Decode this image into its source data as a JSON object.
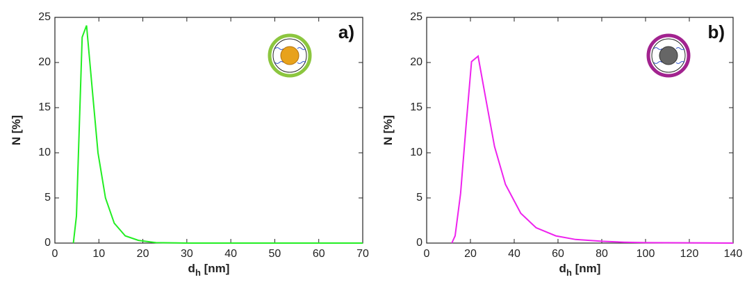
{
  "chart_data": [
    {
      "type": "line",
      "annotation": "a)",
      "ylabel": "N [%]",
      "xlabel": [
        "d",
        "h",
        " [nm]"
      ],
      "x": [
        4.2,
        4.9,
        6.2,
        7.2,
        8.5,
        9.8,
        11.5,
        13.5,
        16,
        19,
        23,
        30,
        70
      ],
      "values": [
        0,
        3,
        22.8,
        24.1,
        17,
        10,
        5,
        2.2,
        0.8,
        0.3,
        0.05,
        0,
        0
      ],
      "color": "#22ee22",
      "xlim": [
        0,
        70
      ],
      "xticks": [
        0,
        10,
        20,
        30,
        40,
        50,
        60,
        70
      ],
      "ylim": [
        0,
        25
      ],
      "yticks": [
        0,
        5,
        10,
        15,
        20,
        25
      ]
    },
    {
      "type": "line",
      "annotation": "b)",
      "ylabel": "N [%]",
      "xlabel": [
        "d",
        "h",
        " [nm]"
      ],
      "x": [
        11.5,
        13,
        15.5,
        18,
        20.5,
        23.5,
        27,
        31,
        36,
        43,
        50,
        59,
        68,
        80,
        90,
        100,
        140
      ],
      "values": [
        0,
        0.8,
        5.5,
        13,
        20.1,
        20.7,
        16,
        10.7,
        6.5,
        3.3,
        1.7,
        0.8,
        0.4,
        0.2,
        0.1,
        0.05,
        0
      ],
      "color": "#ee22ee",
      "xlim": [
        0,
        140
      ],
      "xticks": [
        0,
        20,
        40,
        60,
        80,
        100,
        120,
        140
      ],
      "ylim": [
        0,
        25
      ],
      "yticks": [
        0,
        5,
        10,
        15,
        20,
        25
      ]
    }
  ]
}
